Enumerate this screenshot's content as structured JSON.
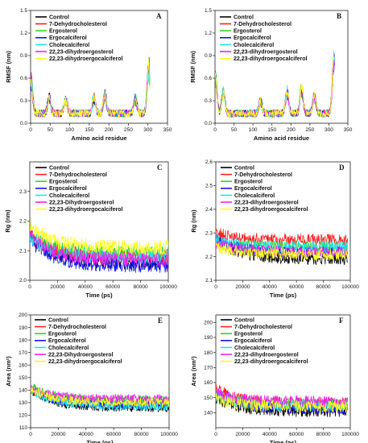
{
  "colors": {
    "Control": "#000000",
    "7-Dehydrocholesterol": "#ff2020",
    "Ergosterol": "#22dd22",
    "Ergocalciferol": "#1515ee",
    "Cholecalciferol": "#22e6ee",
    "22,23-dihydroergosterol": "#ee22ee",
    "22,23-dihydroergocalciferol": "#ffff1a"
  },
  "chart_data": [
    {
      "type": "line",
      "panel": "A",
      "xlabel": "Amino acid residue",
      "ylabel": "RMSF (nm)",
      "xlim": [
        0,
        350
      ],
      "ylim": [
        0,
        1.5
      ],
      "xticks": [
        "0",
        "50",
        "100",
        "150",
        "200",
        "250",
        "300",
        "350"
      ],
      "yticks": [
        "0.0",
        "0.3",
        "0.6",
        "0.9",
        "1.2",
        "1.5"
      ],
      "legend_position": "top-left",
      "series_names": [
        "Control",
        "7-Dehydrocholesterol",
        "Ergosterol",
        "Ergocalciferol",
        "Cholecalciferol",
        "22,23-dihydroergosterol",
        "22,23-dihydroergocalciferol"
      ],
      "x_end": 305,
      "base": 0.12,
      "amp": 0.1,
      "peaks": [
        [
          1,
          0.55
        ],
        [
          48,
          0.32
        ],
        [
          90,
          0.3
        ],
        [
          162,
          0.32
        ],
        [
          190,
          0.35
        ],
        [
          268,
          0.3
        ],
        [
          302,
          0.72
        ]
      ]
    },
    {
      "type": "line",
      "panel": "B",
      "xlabel": "Amino acid residue",
      "ylabel": "RMSF (nm)",
      "xlim": [
        0,
        350
      ],
      "ylim": [
        0,
        1.5
      ],
      "xticks": [
        "0",
        "50",
        "100",
        "150",
        "200",
        "250",
        "300",
        "350"
      ],
      "yticks": [
        "0.0",
        "0.3",
        "0.6",
        "0.9",
        "1.2",
        "1.5"
      ],
      "legend_position": "top-left",
      "series_names": [
        "Control",
        "7-Dehydrocholesterol",
        "Ergosterol",
        "Ergocalciferol",
        "Cholecalciferol",
        "22,23-dihydroergosterol",
        "22,23-dihydroergocalciferol"
      ],
      "x_end": 315,
      "base": 0.12,
      "amp": 0.1,
      "peaks": [
        [
          1,
          0.58
        ],
        [
          22,
          0.4
        ],
        [
          120,
          0.28
        ],
        [
          190,
          0.42
        ],
        [
          228,
          0.45
        ],
        [
          262,
          0.35
        ],
        [
          313,
          0.8
        ]
      ]
    },
    {
      "type": "line",
      "panel": "C",
      "xlabel": "Time (ps)",
      "ylabel": "Rg (nm)",
      "xlim": [
        0,
        100000
      ],
      "ylim": [
        2.0,
        2.4
      ],
      "xticks": [
        "0",
        "20000",
        "40000",
        "60000",
        "80000",
        "100000"
      ],
      "yticks": [
        "2.0",
        "2.1",
        "2.2",
        "2.3"
      ],
      "legend_position": "top-right",
      "series_names": [
        "Control",
        "7-Dehydrocholesterol",
        "Ergosterol",
        "Ergocalciferol",
        "Cholecalciferol",
        "22,23-Dihydroergosterol",
        "22,23-dihydroergocalciferol"
      ],
      "x_end": 100000,
      "amp": 0.025,
      "levels": [
        [
          2.15,
          2.06
        ],
        [
          2.15,
          2.08
        ],
        [
          2.16,
          2.09
        ],
        [
          2.14,
          2.05
        ],
        [
          2.15,
          2.08
        ],
        [
          2.16,
          2.07
        ],
        [
          2.18,
          2.11
        ]
      ]
    },
    {
      "type": "line",
      "panel": "D",
      "xlabel": "Time (ps)",
      "ylabel": "Rg (nm)",
      "xlim": [
        0,
        100000
      ],
      "ylim": [
        2.1,
        2.6
      ],
      "xticks": [
        "0",
        "20000",
        "40000",
        "60000",
        "80000",
        "100000"
      ],
      "yticks": [
        "2.1",
        "2.2",
        "2.3",
        "2.4",
        "2.5",
        "2.6"
      ],
      "legend_position": "top-right",
      "series_names": [
        "Control",
        "7-Dehydrocholesterol",
        "Ergosterol",
        "Ergocalciferol",
        "Cholecalciferol",
        "22,23-dihydroergosterol",
        "22,23-dihydroergocalciferol"
      ],
      "x_end": 98000,
      "amp": 0.025,
      "levels": [
        [
          2.28,
          2.19
        ],
        [
          2.3,
          2.27
        ],
        [
          2.27,
          2.24
        ],
        [
          2.27,
          2.22
        ],
        [
          2.27,
          2.24
        ],
        [
          2.26,
          2.22
        ],
        [
          2.24,
          2.21
        ]
      ]
    },
    {
      "type": "line",
      "panel": "E",
      "xlabel": "Time (ps)",
      "ylabel": "Area (nm²)",
      "xlim": [
        0,
        100000
      ],
      "ylim": [
        110,
        200
      ],
      "xticks": [
        "0",
        "20000",
        "40000",
        "60000",
        "80000",
        "100000"
      ],
      "yticks": [
        "110",
        "120",
        "130",
        "140",
        "150",
        "160",
        "170",
        "180",
        "190",
        "200"
      ],
      "legend_position": "top-right",
      "series_names": [
        "Control",
        "7-Dehydrocholesterol",
        "Ergosterol",
        "Ergocalciferol",
        "Cholecalciferol",
        "22,23-Dihydroergosterol",
        "22,23-dihydroergocalciferol"
      ],
      "x_end": 100000,
      "amp": 3.5,
      "levels": [
        [
          140,
          126
        ],
        [
          141,
          130
        ],
        [
          143,
          132
        ],
        [
          140,
          128
        ],
        [
          140,
          127
        ],
        [
          142,
          133
        ],
        [
          141,
          130
        ]
      ]
    },
    {
      "type": "line",
      "panel": "F",
      "xlabel": "Time (ps)",
      "ylabel": "Area (nm²)",
      "xlim": [
        0,
        100000
      ],
      "ylim": [
        130,
        205
      ],
      "xticks": [
        "0",
        "20000",
        "40000",
        "60000",
        "80000",
        "100000"
      ],
      "yticks": [
        "140",
        "150",
        "160",
        "170",
        "180",
        "190",
        "200"
      ],
      "legend_position": "top-right",
      "series_names": [
        "Control",
        "7-Dehydrocholesterol",
        "Ergosterol",
        "Ergocalciferol",
        "Cholecalciferol",
        "22,23-dihydroergosterol",
        "22,23-dihydroergocalciferol"
      ],
      "x_end": 98000,
      "amp": 4,
      "levels": [
        [
          150,
          141
        ],
        [
          156,
          146
        ],
        [
          152,
          145
        ],
        [
          153,
          143
        ],
        [
          152,
          145
        ],
        [
          154,
          147
        ],
        [
          150,
          144
        ]
      ]
    }
  ]
}
